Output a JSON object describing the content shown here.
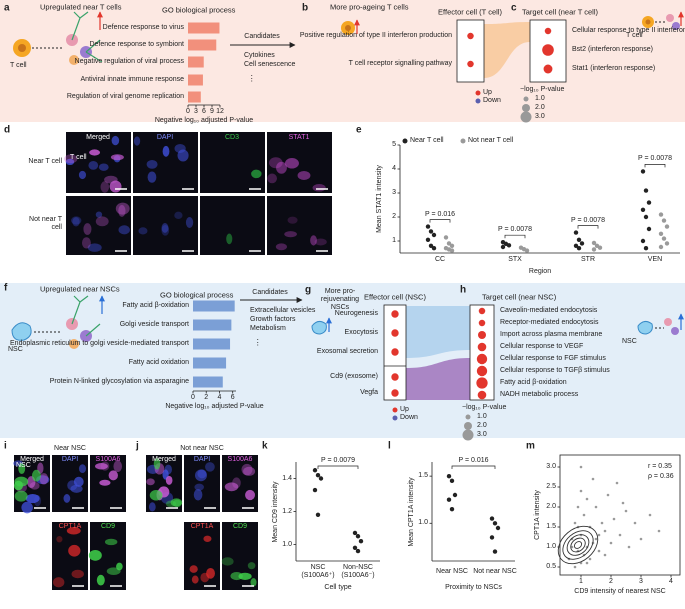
{
  "panels": {
    "a": {
      "label": "a",
      "heading": "Upregulated near T cells",
      "cell": "T cell",
      "candidates": "Candidates",
      "candidate_items": [
        "Cytokines",
        "Cell senescence"
      ],
      "ellipsis": "⋮"
    },
    "b": {
      "label": "b",
      "heading": "More pro-ageing T cells"
    },
    "c": {
      "label": "c",
      "cell": "T cell"
    },
    "d": {
      "label": "d",
      "columns": [
        "Merged",
        "DAPI",
        "CD3",
        "STAT1"
      ],
      "rows": [
        "Near T cell",
        "Not near T cell"
      ],
      "callout": "T cell"
    },
    "e": {
      "label": "e"
    },
    "f": {
      "label": "f",
      "heading": "Upregulated near NSCs",
      "cell": "NSC",
      "candidates": "Candidates",
      "candidate_items": [
        "Extracellular vesicles",
        "Growth factors",
        "Metabolism"
      ],
      "ellipsis": "⋮"
    },
    "g": {
      "label": "g",
      "heading": "More pro-rejuvenating NSCs"
    },
    "h": {
      "label": "h",
      "cell": "NSC"
    },
    "i": {
      "label": "i",
      "heading": "Near NSC",
      "tiles": [
        "Merged",
        "DAPI",
        "S100A6",
        "CPT1A",
        "CD9"
      ],
      "callout": "NSC"
    },
    "j": {
      "label": "j",
      "heading": "Not near NSC",
      "tiles": [
        "Merged",
        "DAPI",
        "S100A6",
        "CPT1A",
        "CD9"
      ]
    },
    "k": {
      "label": "k"
    },
    "l": {
      "label": "l"
    },
    "m": {
      "label": "m"
    }
  },
  "chart_data": [
    {
      "type": "hbar",
      "title": "GO biological process",
      "categories": [
        "Defence response to virus",
        "Defence response to symbiont",
        "Negative regulation of viral process",
        "Antiviral innate immune response",
        "Regulation of viral genome replication"
      ],
      "values": [
        11.8,
        10.6,
        5.9,
        5.6,
        4.8
      ],
      "color": "#f2907c",
      "xlim": [
        0,
        12
      ],
      "xticks": [
        0,
        3,
        6,
        9,
        12
      ],
      "xlabel": "Negative log₁₀ adjusted P-value"
    },
    {
      "type": "dotbox",
      "title": "Effector cell (T cell)",
      "categories": [
        "Positive regulation of type II interferon production",
        "T cell receptor signalling pathway"
      ],
      "values": [
        1.5,
        1.5
      ],
      "color": "#e2362d",
      "legend": [
        {
          "name": "Up",
          "color": "#e2362d"
        },
        {
          "name": "Down",
          "color": "#5a5fae"
        }
      ]
    },
    {
      "type": "dotbox",
      "title": "Target cell (near T cell)",
      "categories": [
        "Cellular response to type II interferon",
        "Bst2 (interferon response)",
        "Stat1 (interferon response)"
      ],
      "values": [
        1.5,
        3.2,
        2.3
      ],
      "color": "#e2362d",
      "size_title": "−log₁₀ P-value",
      "size_legend": [
        {
          "value": 1,
          "label": "1.0"
        },
        {
          "value": 2,
          "label": "2.0"
        },
        {
          "value": 3,
          "label": "3.0"
        }
      ]
    },
    {
      "type": "strip",
      "ylabel": "Mean STAT1 intensity",
      "xlabel": "Region",
      "categories": [
        "CC",
        "STX",
        "STR",
        "VEN"
      ],
      "ylim": [
        0.5,
        5
      ],
      "yticks": [
        1,
        2,
        3,
        4,
        5
      ],
      "series": [
        {
          "name": "Near T cell",
          "color": "#222222",
          "values": [
            [
              1.6,
              1.4,
              1.25,
              1.05,
              0.8,
              0.7
            ],
            [
              0.95,
              0.88,
              0.82,
              0.75
            ],
            [
              1.35,
              1.05,
              0.9,
              0.8,
              0.7
            ],
            [
              3.9,
              3.1,
              2.6,
              2.3,
              2.0,
              1.5,
              1.0,
              0.7
            ]
          ]
        },
        {
          "name": "Not near T cell",
          "color": "#9a9a9a",
          "values": [
            [
              1.15,
              0.9,
              0.8,
              0.7,
              0.65,
              0.6
            ],
            [
              0.72,
              0.66,
              0.6
            ],
            [
              0.92,
              0.8,
              0.72,
              0.65
            ],
            [
              2.1,
              1.85,
              1.6,
              1.3,
              1.1,
              0.9,
              0.75
            ]
          ]
        }
      ],
      "annotations": [
        "P = 0.016",
        "P = 0.0078",
        "P = 0.0078",
        "P = 0.0078"
      ]
    },
    {
      "type": "hbar",
      "title": "GO biological process",
      "categories": [
        "Fatty acid β-oxidation",
        "Golgi vesicle transport",
        "Endoplasmic reticulum to golgi vesicle-mediated transport",
        "Fatty acid oxidation",
        "Protein N-linked glycosylation via asparagine"
      ],
      "values": [
        6.3,
        5.8,
        5.6,
        5.0,
        4.5
      ],
      "color": "#7b9fd6",
      "xlim": [
        0,
        6.5
      ],
      "xticks": [
        0,
        2,
        4,
        6
      ],
      "xlabel": "Negative log₁₀ adjusted P-value"
    },
    {
      "type": "dotbox",
      "title": "Effector cell (NSC)",
      "categories": [
        "Neurogenesis",
        "Exocytosis",
        "Exosomal secretion",
        "Cd9 (exosome)",
        "Vegfa"
      ],
      "values": [
        1.8,
        1.8,
        1.8,
        1.8,
        1.8
      ],
      "color": "#e2362d",
      "legend": [
        {
          "name": "Up",
          "color": "#e2362d"
        },
        {
          "name": "Down",
          "color": "#5a5fae"
        }
      ]
    },
    {
      "type": "dotbox",
      "title": "Target cell (near NSC)",
      "categories": [
        "Caveolin-mediated endocytosis",
        "Receptor-mediated endocytosis",
        "Import across plasma membrane",
        "Cellular response to VEGF",
        "Cellular response to FGF stimulus",
        "Cellular response to TGFβ stimulus",
        "Fatty acid β-oxidation",
        "NADH metabolic process"
      ],
      "values": [
        1.5,
        1.5,
        2.0,
        2.2,
        2.8,
        2.8,
        3.1,
        2.2
      ],
      "color": "#e2362d",
      "size_title": "−log₁₀ P-value",
      "size_legend": [
        {
          "value": 1,
          "label": "1.0"
        },
        {
          "value": 2,
          "label": "2.0"
        },
        {
          "value": 3,
          "label": "3.0"
        }
      ]
    },
    {
      "type": "strip",
      "ylabel": "Mean CD9 intensity",
      "xlabel": "Cell type",
      "categories": [
        "NSC (S100A6⁺)",
        "Non-NSC (S100A6⁻)"
      ],
      "ylim": [
        0.9,
        1.5
      ],
      "yticks": [
        {
          "value": 1,
          "label": "1.0"
        },
        {
          "value": 1.2,
          "label": "1.2"
        },
        {
          "value": 1.4,
          "label": "1.4"
        }
      ],
      "values": [
        [
          1.45,
          1.42,
          1.4,
          1.33,
          1.18
        ],
        [
          1.07,
          1.05,
          1.02,
          0.98,
          0.96
        ]
      ],
      "color": "#222222",
      "annotations": [
        "P = 0.0079"
      ]
    },
    {
      "type": "strip",
      "ylabel": "Mean CPT1A intensity",
      "xlabel": "Proximity to NSCs",
      "categories": [
        "Near NSC",
        "Not near NSC"
      ],
      "ylim": [
        0.6,
        1.65
      ],
      "yticks": [
        {
          "value": 1,
          "label": "1.0"
        },
        {
          "value": 1.5,
          "label": "1.5"
        }
      ],
      "values": [
        [
          1.5,
          1.45,
          1.3,
          1.25,
          1.15
        ],
        [
          1.05,
          1.0,
          0.95,
          0.85,
          0.7
        ]
      ],
      "color": "#222222",
      "annotations": [
        "P = 0.016"
      ]
    },
    {
      "type": "scatter",
      "xlabel": "CD9 intensity of nearest NSC",
      "ylabel": "CPT1A intensity",
      "xlim": [
        0.3,
        4.3
      ],
      "xticks": [
        1,
        2,
        3,
        4
      ],
      "ylim": [
        0.3,
        3.3
      ],
      "yticks": [
        {
          "value": 0.5,
          "label": "0.5"
        },
        {
          "value": 1,
          "label": "1.0"
        },
        {
          "value": 1.5,
          "label": "1.5"
        },
        {
          "value": 2,
          "label": "2.0"
        },
        {
          "value": 2.5,
          "label": "2.5"
        },
        {
          "value": 3,
          "label": "3.0"
        }
      ],
      "x": [
        0.6,
        0.7,
        0.8,
        0.8,
        0.9,
        0.9,
        1.0,
        1.0,
        1.0,
        1.1,
        1.1,
        1.2,
        1.2,
        1.3,
        1.3,
        1.4,
        1.5,
        1.5,
        1.6,
        1.7,
        1.8,
        1.9,
        2.0,
        2.1,
        2.2,
        2.3,
        2.5,
        2.6,
        2.8,
        3.0,
        3.3,
        3.6,
        1.0,
        1.2,
        0.7,
        1.4,
        1.8,
        2.4,
        0.9,
        1.6
      ],
      "values": [
        0.7,
        1.2,
        0.5,
        1.6,
        0.9,
        2.0,
        0.6,
        1.3,
        2.4,
        0.8,
        1.8,
        1.0,
        2.2,
        0.7,
        1.5,
        2.7,
        1.2,
        2.0,
        0.9,
        1.6,
        1.4,
        2.3,
        1.1,
        1.7,
        2.6,
        1.3,
        1.9,
        1.0,
        1.6,
        1.2,
        1.8,
        1.4,
        3.0,
        0.6,
        1.0,
        1.1,
        0.8,
        2.1,
        1.5,
        1.3
      ],
      "color": "#9a9a9a",
      "annotations": [
        "r = 0.35",
        "ρ = 0.36"
      ]
    }
  ]
}
